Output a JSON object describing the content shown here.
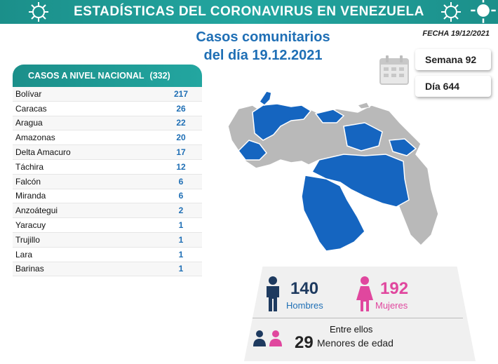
{
  "header": {
    "title": "ESTADÍSTICAS DEL CORONAVIRUS EN VENEZUELA"
  },
  "subtitle": {
    "line1": "Casos comunitarios",
    "line2": "del día 19.12.2021"
  },
  "fecha": "FECHA 19/12/2021",
  "semana": "Semana 92",
  "dia": "Día 644",
  "table": {
    "header_label": "CASOS A NIVEL NACIONAL",
    "header_total": "(332)",
    "rows": [
      {
        "name": "Bolívar",
        "value": "217"
      },
      {
        "name": "Caracas",
        "value": "26"
      },
      {
        "name": "Aragua",
        "value": "22"
      },
      {
        "name": "Amazonas",
        "value": "20"
      },
      {
        "name": "Delta Amacuro",
        "value": "17"
      },
      {
        "name": "Táchira",
        "value": "12"
      },
      {
        "name": "Falcón",
        "value": "6"
      },
      {
        "name": "Miranda",
        "value": "6"
      },
      {
        "name": "Anzoátegui",
        "value": "2"
      },
      {
        "name": "Yaracuy",
        "value": "1"
      },
      {
        "name": "Trujillo",
        "value": "1"
      },
      {
        "name": "Lara",
        "value": "1"
      },
      {
        "name": "Barinas",
        "value": "1"
      }
    ]
  },
  "stats": {
    "hombres_count": "140",
    "hombres_label": "Hombres",
    "mujeres_count": "192",
    "mujeres_label": "Mujeres",
    "menores_title": "Entre ellos",
    "menores_count": "29",
    "menores_label": "Menores de edad"
  },
  "colors": {
    "teal": "#1b8f8a",
    "blue": "#1f6fb5",
    "map_blue": "#1565c0",
    "map_gray": "#b9b9b9",
    "pink": "#e0479e",
    "navy": "#1e3a5f"
  }
}
